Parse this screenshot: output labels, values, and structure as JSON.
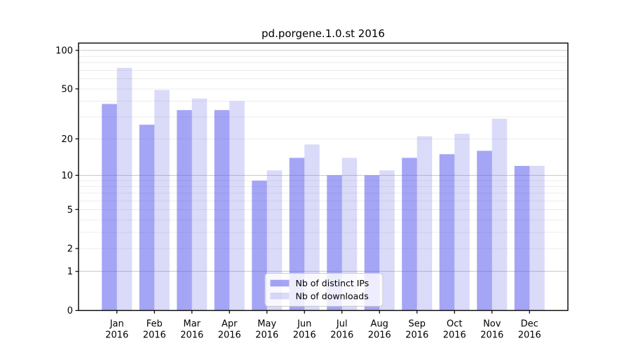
{
  "chart_data": {
    "type": "bar",
    "title": "pd.porgene.1.0.st 2016",
    "categories": [
      "Jan",
      "Feb",
      "Mar",
      "Apr",
      "May",
      "Jun",
      "Jul",
      "Aug",
      "Sep",
      "Oct",
      "Nov",
      "Dec"
    ],
    "category_year": "2016",
    "series": [
      {
        "name": "Nb of distinct IPs",
        "color": "#5b5bed",
        "opacity": 0.55,
        "rendered_hex": "#a5a5f5",
        "values": [
          38,
          26,
          34,
          34,
          9,
          14,
          10,
          10,
          14,
          15,
          16,
          12
        ]
      },
      {
        "name": "Nb of downloads",
        "color": "#6b6be7",
        "opacity": 0.25,
        "rendered_hex": "#dadaf9",
        "values": [
          73,
          49,
          42,
          40,
          11,
          18,
          14,
          11,
          21,
          22,
          29,
          12
        ]
      }
    ],
    "xlabel": "",
    "ylabel": "",
    "yscale": "log1p",
    "ylim": [
      0,
      114
    ],
    "yticks": [
      "100",
      "50",
      "20",
      "10",
      "5",
      "2",
      "1",
      "0"
    ],
    "minor_gridlines": [
      2,
      3,
      4,
      5,
      6,
      7,
      8,
      9,
      20,
      30,
      40,
      50,
      60,
      70,
      80,
      90
    ],
    "major_gridlines": [
      1,
      10,
      100
    ],
    "grid": "on",
    "legend_position": "inside lower center",
    "colors": {
      "axis": "#000000",
      "minor_grid": "#ececec",
      "major_grid": "#c9c9c9",
      "text": "#000000",
      "legend_border": "#cccccc",
      "legend_background": "rgba(255,255,255,0.8)",
      "figure_background": "#ffffff"
    }
  }
}
